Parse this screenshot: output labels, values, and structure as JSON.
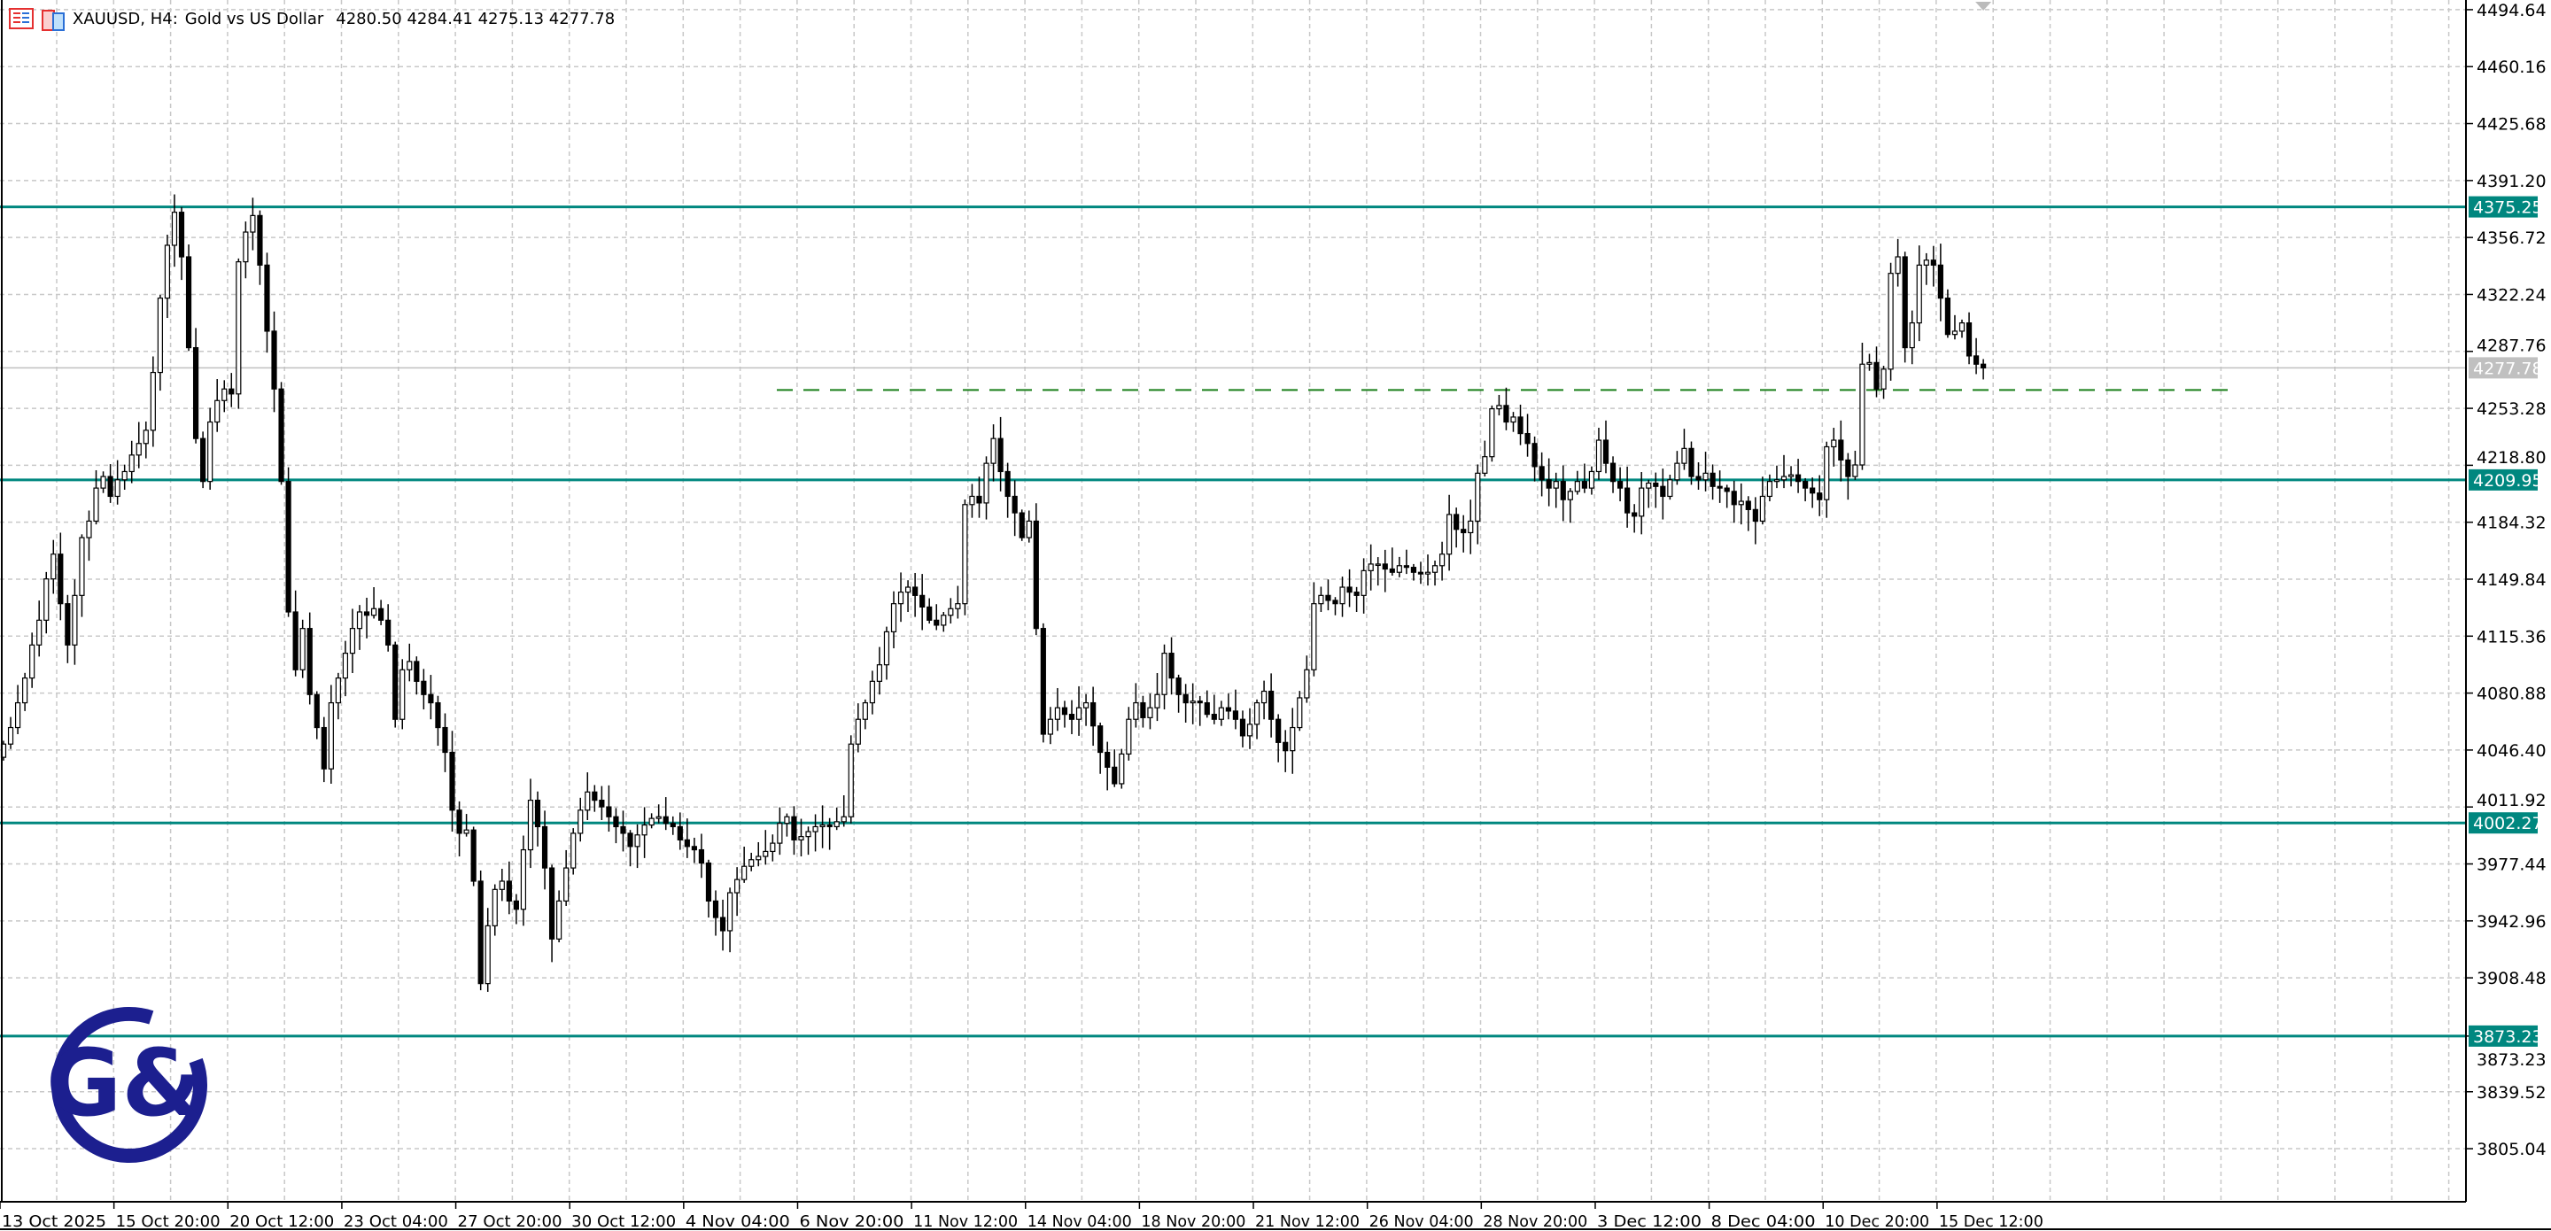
{
  "header": {
    "symbol": "XAUUSD, H4:",
    "description": "Gold vs US Dollar",
    "ohlc": "4280.50 4284.41 4275.13 4277.78",
    "icons": [
      "market-watch-icon",
      "objects-icon"
    ]
  },
  "logo": {
    "text": "G&",
    "color": "#1c1f8f"
  },
  "chart_data": {
    "type": "candlestick",
    "symbol": "XAUUSD",
    "timeframe": "H4",
    "ylim": [
      3772.9,
      4500.5
    ],
    "grid": true,
    "y_ticks": [
      "4494.64",
      "4460.16",
      "4425.68",
      "4391.20",
      "4356.72",
      "4322.24",
      "4287.76",
      "4253.28",
      "4218.80",
      "4184.32",
      "4149.84",
      "4115.36",
      "4080.88",
      "4046.40",
      "4011.92",
      "3977.44",
      "3942.96",
      "3908.48",
      "3873.23",
      "3839.52",
      "3805.04"
    ],
    "x_ticks": [
      "13 Oct 2025",
      "15 Oct 20:00",
      "20 Oct 12:00",
      "23 Oct 04:00",
      "27 Oct 20:00",
      "30 Oct 12:00",
      "4 Nov 04:00",
      "6 Nov 20:00",
      "11 Nov 12:00",
      "14 Nov 04:00",
      "18 Nov 20:00",
      "21 Nov 12:00",
      "26 Nov 04:00",
      "28 Nov 20:00",
      "3 Dec 12:00",
      "8 Dec 04:00",
      "10 Dec 20:00",
      "15 Dec 12:00"
    ],
    "x_tick_every_bars": 16,
    "closes": [
      4050,
      4060,
      4075,
      4090,
      4110,
      4125,
      4150,
      4165,
      4135,
      4110,
      4140,
      4175,
      4185,
      4205,
      4212,
      4200,
      4210,
      4215,
      4225,
      4232,
      4240,
      4275,
      4320,
      4352,
      4372,
      4345,
      4290,
      4235,
      4209,
      4245,
      4258,
      4265,
      4262,
      4342,
      4360,
      4370,
      4340,
      4300,
      4265,
      4209,
      4130,
      4095,
      4120,
      4080,
      4060,
      4035,
      4075,
      4090,
      4105,
      4120,
      4130,
      4128,
      4132,
      4125,
      4110,
      4065,
      4095,
      4100,
      4088,
      4080,
      4075,
      4060,
      4045,
      4010,
      3996,
      3998,
      3967,
      3905,
      3940,
      3962,
      3967,
      3955,
      3950,
      3986,
      4016,
      4000,
      3975,
      3932,
      3955,
      3975,
      3996,
      4010,
      4021,
      4016,
      4012,
      4006,
      4000,
      3996,
      3988,
      3995,
      4001,
      4005,
      4006,
      4002,
      4000,
      3992,
      3988,
      3986,
      3978,
      3955,
      3945,
      3937,
      3960,
      3968,
      3976,
      3980,
      3982,
      3985,
      3990,
      4002,
      4006,
      3992,
      3994,
      3997,
      4000,
      4001,
      4000,
      4003,
      4006,
      4050,
      4065,
      4075,
      4088,
      4098,
      4118,
      4135,
      4142,
      4145,
      4140,
      4133,
      4125,
      4122,
      4128,
      4132,
      4135,
      4195,
      4200,
      4196,
      4220,
      4235,
      4215,
      4200,
      4190,
      4175,
      4185,
      4120,
      4056,
      4065,
      4072,
      4068,
      4065,
      4072,
      4075,
      4061,
      4045,
      4036,
      4026,
      4044,
      4065,
      4075,
      4066,
      4072,
      4080,
      4105,
      4090,
      4080,
      4075,
      4076,
      4075,
      4068,
      4065,
      4072,
      4070,
      4065,
      4055,
      4062,
      4075,
      4082,
      4065,
      4051,
      4046,
      4060,
      4078,
      4095,
      4135,
      4140,
      4137,
      4135,
      4145,
      4142,
      4140,
      4155,
      4159,
      4159,
      4156,
      4154,
      4158,
      4157,
      4154,
      4153,
      4154,
      4158,
      4165,
      4189,
      4180,
      4178,
      4185,
      4214,
      4224,
      4253,
      4255,
      4245,
      4248,
      4238,
      4232,
      4218,
      4210,
      4205,
      4209,
      4198,
      4203,
      4209,
      4205,
      4215,
      4234,
      4220,
      4209,
      4205,
      4190,
      4188,
      4205,
      4208,
      4206,
      4200,
      4210,
      4220,
      4229,
      4212,
      4210,
      4214,
      4206,
      4205,
      4203,
      4195,
      4197,
      4192,
      4185,
      4200,
      4209,
      4210,
      4212,
      4213,
      4209,
      4205,
      4202,
      4198,
      4230,
      4234,
      4222,
      4212,
      4219,
      4280,
      4281,
      4265,
      4277,
      4335,
      4345,
      4290,
      4305,
      4340,
      4343,
      4340,
      4320,
      4298,
      4300,
      4305,
      4285,
      4280,
      4277.78
    ],
    "levels": [
      {
        "price": 4375.25,
        "label": "4375.25"
      },
      {
        "price": 4209.95,
        "label": "4209.95"
      },
      {
        "price": 4002.27,
        "label": "4002.27"
      },
      {
        "price": 3873.23,
        "label": "3873.23"
      }
    ],
    "current_price": {
      "price": 4277.78,
      "label": "4277.78"
    },
    "dashed_level": {
      "price": 4264.4
    },
    "colors": {
      "level": "#00877f",
      "dashed_level": "#1a7f1a",
      "current_price": "#c0c0c0",
      "bull_body": "#ffffff",
      "bear_body": "#000000",
      "grid": "#c8c8c8"
    }
  }
}
